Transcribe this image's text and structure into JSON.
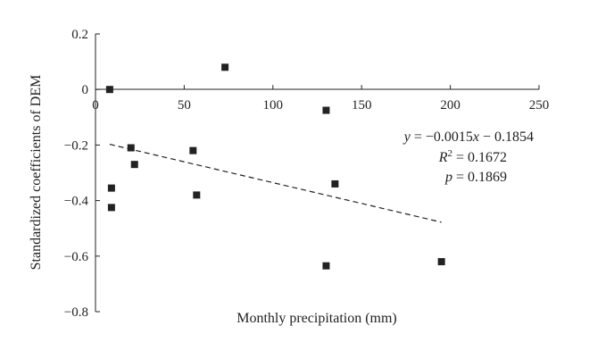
{
  "chart_data": {
    "type": "scatter",
    "xlabel": "Monthly precipitation (mm)",
    "ylabel": "Standardized coefficients of DEM",
    "xlim": [
      0,
      250
    ],
    "ylim": [
      -0.8,
      0.2
    ],
    "xticks": [
      0,
      50,
      100,
      150,
      200,
      250
    ],
    "yticks": [
      0.2,
      0,
      -0.2,
      -0.4,
      -0.6,
      -0.8
    ],
    "xtick_labels": [
      "0",
      "50",
      "100",
      "150",
      "200",
      "250"
    ],
    "ytick_labels": [
      "0.2",
      "0",
      "−0.2",
      "−0.4",
      "−0.6",
      "−0.8"
    ],
    "grid": false,
    "points": [
      {
        "x": 8,
        "y": 0.0
      },
      {
        "x": 73,
        "y": 0.08
      },
      {
        "x": 130,
        "y": -0.075
      },
      {
        "x": 20,
        "y": -0.21
      },
      {
        "x": 22,
        "y": -0.27
      },
      {
        "x": 55,
        "y": -0.22
      },
      {
        "x": 9,
        "y": -0.355
      },
      {
        "x": 9,
        "y": -0.425
      },
      {
        "x": 57,
        "y": -0.38
      },
      {
        "x": 135,
        "y": -0.34
      },
      {
        "x": 130,
        "y": -0.635
      },
      {
        "x": 195,
        "y": -0.62
      }
    ],
    "trendline": {
      "slope": -0.0015,
      "intercept": -0.1854,
      "x_range": [
        8,
        195
      ],
      "style": "dashed"
    },
    "annotations": {
      "equation": "y = −0.0015x − 0.1854",
      "r2": "R2 = 0.1672",
      "p": "p = 0.1869"
    }
  }
}
